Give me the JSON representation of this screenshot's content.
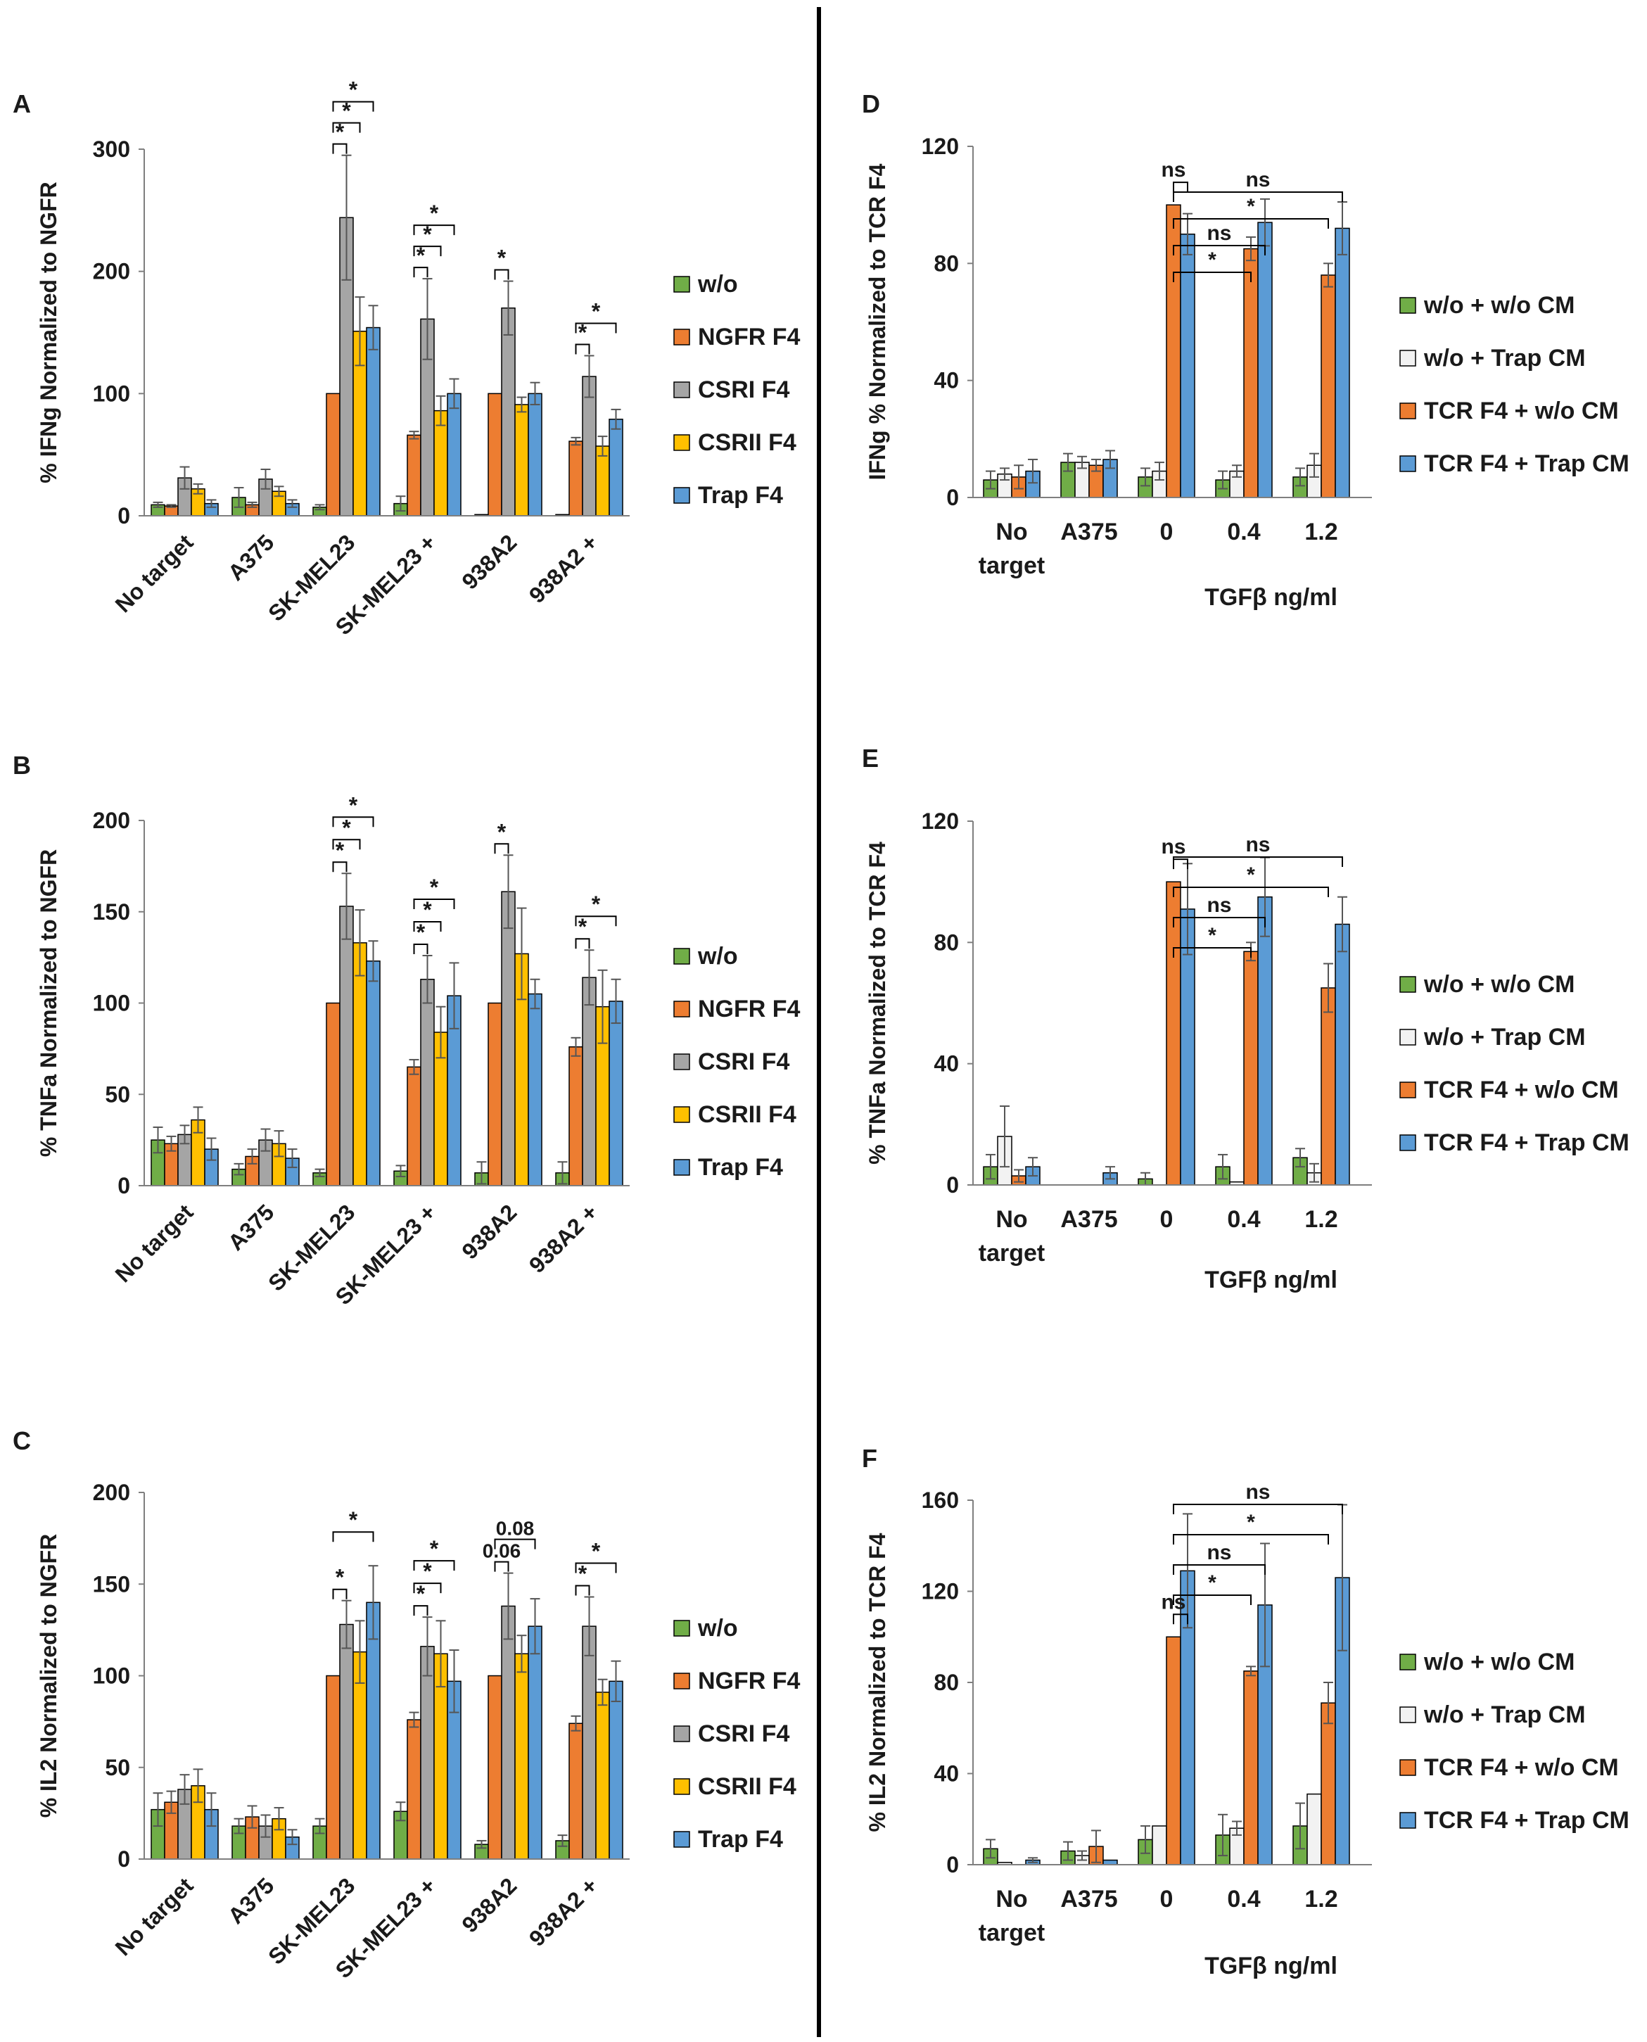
{
  "colors": {
    "w/o": "#70ad47",
    "NGFR F4": "#ed7d31",
    "CSRI F4": "#a5a5a5",
    "CSRII F4": "#ffc000",
    "Trap F4": "#5b9bd5",
    "w/o + w/o CM": "#70ad47",
    "w/o + Trap CM": "#f2f2f2",
    "TCR F4 + w/o CM": "#ed7d31",
    "TCR F4 + Trap CM": "#5b9bd5"
  },
  "chart_data": [
    {
      "panel": "A",
      "type": "bar",
      "ylabel": "% IFNg Normalized to NGFR",
      "ylim": [
        0,
        300
      ],
      "yticks": [
        "0",
        "100",
        "200",
        "300"
      ],
      "categories": [
        "No target",
        "A375",
        "SK-MEL23",
        "SK-MEL23 +",
        "938A2",
        "938A2 +"
      ],
      "series": [
        {
          "name": "w/o",
          "values": [
            9,
            15,
            7,
            10,
            1,
            1
          ],
          "errors": [
            2,
            8,
            2,
            6,
            0,
            0
          ]
        },
        {
          "name": "NGFR F4",
          "values": [
            8,
            9,
            100,
            66,
            100,
            61
          ],
          "errors": [
            1,
            2,
            0,
            3,
            0,
            3
          ]
        },
        {
          "name": "CSRI F4",
          "values": [
            31,
            30,
            244,
            161,
            170,
            114
          ],
          "errors": [
            9,
            8,
            51,
            33,
            22,
            17
          ]
        },
        {
          "name": "CSRII F4",
          "values": [
            22,
            20,
            151,
            86,
            91,
            57
          ],
          "errors": [
            4,
            4,
            28,
            12,
            6,
            8
          ]
        },
        {
          "name": "Trap F4",
          "values": [
            10,
            10,
            154,
            100,
            100,
            79
          ],
          "errors": [
            3,
            3,
            18,
            12,
            9,
            8
          ]
        }
      ],
      "annotations": [
        {
          "label": "*",
          "cat": 2,
          "from": 1,
          "to": 2
        },
        {
          "label": "*",
          "cat": 2,
          "from": 1,
          "to": 3
        },
        {
          "label": "*",
          "cat": 2,
          "from": 1,
          "to": 4
        },
        {
          "label": "*",
          "cat": 3,
          "from": 1,
          "to": 2
        },
        {
          "label": "*",
          "cat": 3,
          "from": 1,
          "to": 3
        },
        {
          "label": "*",
          "cat": 3,
          "from": 1,
          "to": 4
        },
        {
          "label": "*",
          "cat": 4,
          "from": 1,
          "to": 2
        },
        {
          "label": "*",
          "cat": 5,
          "from": 1,
          "to": 2
        },
        {
          "label": "*",
          "cat": 5,
          "from": 1,
          "to": 4
        }
      ]
    },
    {
      "panel": "B",
      "type": "bar",
      "ylabel": "% TNFa Normalized to NGFR",
      "ylim": [
        0,
        200
      ],
      "yticks": [
        "0",
        "50",
        "100",
        "150",
        "200"
      ],
      "categories": [
        "No target",
        "A375",
        "SK-MEL23",
        "SK-MEL23 +",
        "938A2",
        "938A2 +"
      ],
      "series": [
        {
          "name": "w/o",
          "values": [
            25,
            9,
            7,
            8,
            7,
            7
          ],
          "errors": [
            7,
            3,
            2,
            3,
            6,
            6
          ]
        },
        {
          "name": "NGFR F4",
          "values": [
            23,
            16,
            100,
            65,
            100,
            76
          ],
          "errors": [
            4,
            4,
            0,
            4,
            0,
            5
          ]
        },
        {
          "name": "CSRI F4",
          "values": [
            28,
            25,
            153,
            113,
            161,
            114
          ],
          "errors": [
            5,
            6,
            18,
            13,
            20,
            15
          ]
        },
        {
          "name": "CSRII F4",
          "values": [
            36,
            23,
            133,
            84,
            127,
            98
          ],
          "errors": [
            7,
            7,
            18,
            14,
            25,
            20
          ]
        },
        {
          "name": "Trap F4",
          "values": [
            20,
            15,
            123,
            104,
            105,
            101
          ],
          "errors": [
            6,
            5,
            11,
            18,
            8,
            12
          ]
        }
      ],
      "annotations": [
        {
          "label": "*",
          "cat": 2,
          "from": 1,
          "to": 2
        },
        {
          "label": "*",
          "cat": 2,
          "from": 1,
          "to": 3
        },
        {
          "label": "*",
          "cat": 2,
          "from": 1,
          "to": 4
        },
        {
          "label": "*",
          "cat": 3,
          "from": 1,
          "to": 2
        },
        {
          "label": "*",
          "cat": 3,
          "from": 1,
          "to": 3
        },
        {
          "label": "*",
          "cat": 3,
          "from": 1,
          "to": 4
        },
        {
          "label": "*",
          "cat": 4,
          "from": 1,
          "to": 2
        },
        {
          "label": "*",
          "cat": 5,
          "from": 1,
          "to": 2
        },
        {
          "label": "*",
          "cat": 5,
          "from": 1,
          "to": 4
        }
      ]
    },
    {
      "panel": "C",
      "type": "bar",
      "ylabel": "% IL2 Normalized to NGFR",
      "ylim": [
        0,
        200
      ],
      "yticks": [
        "0",
        "50",
        "100",
        "150",
        "200"
      ],
      "categories": [
        "No target",
        "A375",
        "SK-MEL23",
        "SK-MEL23 +",
        "938A2",
        "938A2 +"
      ],
      "series": [
        {
          "name": "w/o",
          "values": [
            27,
            18,
            18,
            26,
            8,
            10
          ],
          "errors": [
            9,
            4,
            4,
            5,
            2,
            3
          ]
        },
        {
          "name": "NGFR F4",
          "values": [
            31,
            23,
            100,
            76,
            100,
            74
          ],
          "errors": [
            6,
            6,
            0,
            4,
            0,
            4
          ]
        },
        {
          "name": "CSRI F4",
          "values": [
            38,
            18,
            128,
            116,
            138,
            127
          ],
          "errors": [
            8,
            6,
            13,
            16,
            18,
            16
          ]
        },
        {
          "name": "CSRII F4",
          "values": [
            40,
            22,
            113,
            112,
            112,
            91
          ],
          "errors": [
            9,
            6,
            17,
            18,
            10,
            7
          ]
        },
        {
          "name": "Trap F4",
          "values": [
            27,
            12,
            140,
            97,
            127,
            97
          ],
          "errors": [
            9,
            4,
            20,
            17,
            15,
            11
          ]
        }
      ],
      "annotations": [
        {
          "label": "*",
          "cat": 2,
          "from": 1,
          "to": 2
        },
        {
          "label": "*",
          "cat": 2,
          "from": 1,
          "to": 4
        },
        {
          "label": "*",
          "cat": 3,
          "from": 1,
          "to": 2
        },
        {
          "label": "*",
          "cat": 3,
          "from": 1,
          "to": 3
        },
        {
          "label": "*",
          "cat": 3,
          "from": 1,
          "to": 4
        },
        {
          "label": "0.06",
          "cat": 4,
          "from": 1,
          "to": 2
        },
        {
          "label": "0.08",
          "cat": 4,
          "from": 1,
          "to": 4
        },
        {
          "label": "*",
          "cat": 5,
          "from": 1,
          "to": 2
        },
        {
          "label": "*",
          "cat": 5,
          "from": 1,
          "to": 4
        }
      ]
    },
    {
      "panel": "D",
      "type": "bar",
      "ylabel": "IFNg % Normalized to TCR F4",
      "xlabel": "TGFβ ng/ml",
      "ylim": [
        0,
        120
      ],
      "yticks": [
        "0",
        "40",
        "80",
        "120"
      ],
      "categories": [
        "No target",
        "A375",
        "0",
        "0.4",
        "1.2"
      ],
      "series": [
        {
          "name": "w/o + w/o CM",
          "values": [
            6,
            12,
            7,
            6,
            7
          ],
          "errors": [
            3,
            3,
            3,
            3,
            3
          ]
        },
        {
          "name": "w/o + Trap CM",
          "values": [
            8,
            12,
            9,
            9,
            11
          ],
          "errors": [
            2,
            2,
            3,
            2,
            4
          ]
        },
        {
          "name": "TCR F4 + w/o CM",
          "values": [
            7,
            11,
            100,
            85,
            76
          ],
          "errors": [
            4,
            2,
            0,
            4,
            4
          ]
        },
        {
          "name": "TCR F4 + Trap CM",
          "values": [
            9,
            13,
            90,
            94,
            92
          ],
          "errors": [
            4,
            3,
            7,
            8,
            9
          ]
        }
      ],
      "annotations": [
        {
          "label": "ns",
          "from": [
            2,
            2
          ],
          "to": [
            2,
            3
          ]
        },
        {
          "label": "*",
          "from": [
            2,
            2
          ],
          "to": [
            3,
            2
          ]
        },
        {
          "label": "ns",
          "from": [
            2,
            2
          ],
          "to": [
            3,
            3
          ]
        },
        {
          "label": "*",
          "from": [
            2,
            2
          ],
          "to": [
            4,
            2
          ]
        },
        {
          "label": "ns",
          "from": [
            2,
            2
          ],
          "to": [
            4,
            3
          ]
        }
      ]
    },
    {
      "panel": "E",
      "type": "bar",
      "ylabel": "% TNFa Normalized to TCR F4",
      "xlabel": "TGFβ ng/ml",
      "ylim": [
        0,
        120
      ],
      "yticks": [
        "0",
        "40",
        "80",
        "120"
      ],
      "categories": [
        "No target",
        "A375",
        "0",
        "0.4",
        "1.2"
      ],
      "series": [
        {
          "name": "w/o + w/o CM",
          "values": [
            6,
            0,
            2,
            6,
            9
          ],
          "errors": [
            4,
            0,
            2,
            4,
            3
          ]
        },
        {
          "name": "w/o + Trap CM",
          "values": [
            16,
            0,
            0,
            1,
            4
          ],
          "errors": [
            10,
            0,
            0,
            0,
            3
          ]
        },
        {
          "name": "TCR F4 + w/o CM",
          "values": [
            3,
            0,
            100,
            77,
            65
          ],
          "errors": [
            2,
            0,
            0,
            3,
            8
          ]
        },
        {
          "name": "TCR F4 + Trap CM",
          "values": [
            6,
            4,
            91,
            95,
            86
          ],
          "errors": [
            3,
            2,
            15,
            13,
            9
          ]
        }
      ],
      "annotations": [
        {
          "label": "ns",
          "from": [
            2,
            2
          ],
          "to": [
            2,
            3
          ]
        },
        {
          "label": "*",
          "from": [
            2,
            2
          ],
          "to": [
            3,
            2
          ]
        },
        {
          "label": "ns",
          "from": [
            2,
            2
          ],
          "to": [
            3,
            3
          ]
        },
        {
          "label": "*",
          "from": [
            2,
            2
          ],
          "to": [
            4,
            2
          ]
        },
        {
          "label": "ns",
          "from": [
            2,
            2
          ],
          "to": [
            4,
            3
          ]
        }
      ]
    },
    {
      "panel": "F",
      "type": "bar",
      "ylabel": "% IL2 Normalized to TCR F4",
      "xlabel": "TGFβ ng/ml",
      "ylim": [
        0,
        160
      ],
      "yticks": [
        "0",
        "40",
        "80",
        "120",
        "160"
      ],
      "categories": [
        "No target",
        "A375",
        "0",
        "0.4",
        "1.2"
      ],
      "series": [
        {
          "name": "w/o + w/o CM",
          "values": [
            7,
            6,
            11,
            13,
            17
          ],
          "errors": [
            4,
            4,
            6,
            9,
            10
          ]
        },
        {
          "name": "w/o + Trap CM",
          "values": [
            1,
            4,
            17,
            16,
            31
          ],
          "errors": [
            0,
            2,
            0,
            3,
            0
          ]
        },
        {
          "name": "TCR F4 + w/o CM",
          "values": [
            0,
            8,
            100,
            85,
            71
          ],
          "errors": [
            0,
            7,
            0,
            2,
            9
          ]
        },
        {
          "name": "TCR F4 + Trap CM",
          "values": [
            2,
            2,
            129,
            114,
            126
          ],
          "errors": [
            1,
            0,
            25,
            27,
            32
          ]
        }
      ],
      "annotations": [
        {
          "label": "ns",
          "from": [
            2,
            2
          ],
          "to": [
            2,
            3
          ]
        },
        {
          "label": "*",
          "from": [
            2,
            2
          ],
          "to": [
            3,
            2
          ]
        },
        {
          "label": "ns",
          "from": [
            2,
            2
          ],
          "to": [
            3,
            3
          ]
        },
        {
          "label": "*",
          "from": [
            2,
            2
          ],
          "to": [
            4,
            2
          ]
        },
        {
          "label": "ns",
          "from": [
            2,
            2
          ],
          "to": [
            4,
            3
          ]
        }
      ]
    }
  ]
}
